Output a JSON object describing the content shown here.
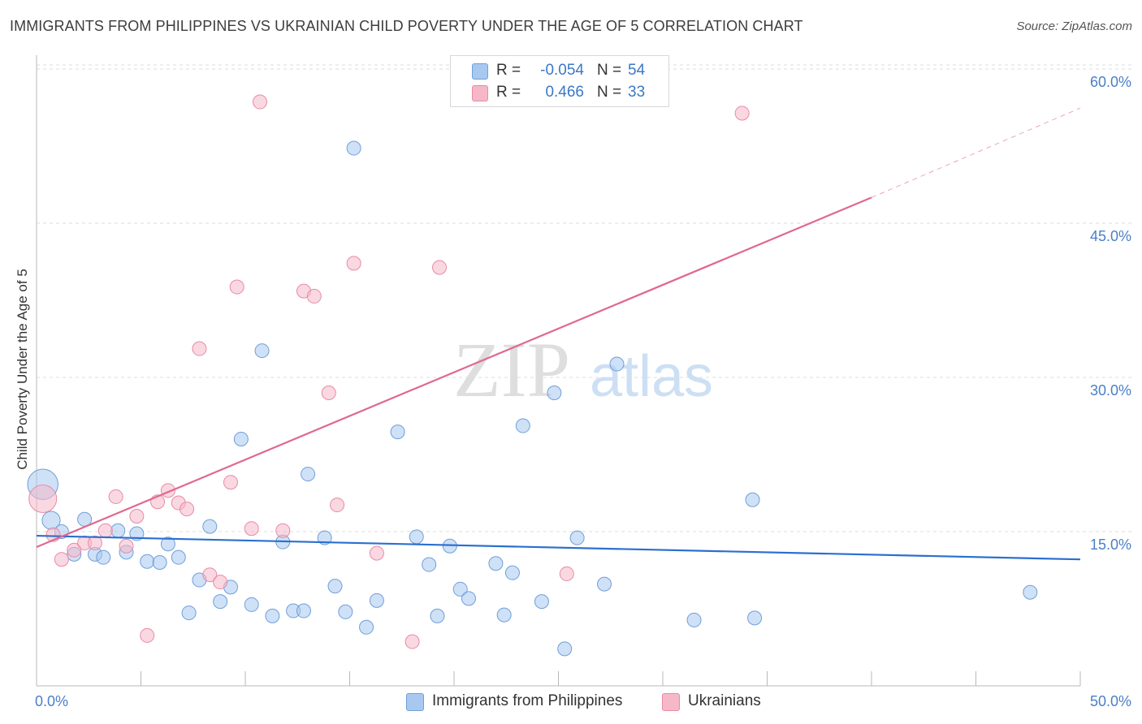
{
  "title": "IMMIGRANTS FROM PHILIPPINES VS UKRAINIAN CHILD POVERTY UNDER THE AGE OF 5 CORRELATION CHART",
  "source": "Source: ZipAtlas.com",
  "watermark": {
    "zip": "ZIP",
    "atlas": "atlas"
  },
  "legend_top": [
    {
      "r_label": "R =",
      "r_value": "-0.054",
      "n_label": "N =",
      "n_value": "54",
      "color": "#a8c8f0"
    },
    {
      "r_label": "R =",
      "r_value": "0.466",
      "n_label": "N =",
      "n_value": "33",
      "color": "#f6b8c9"
    }
  ],
  "legend_bottom": [
    {
      "label": "Immigrants from Philippines",
      "color": "#a8c8f0"
    },
    {
      "label": "Ukrainians",
      "color": "#f6b8c9"
    }
  ],
  "colors": {
    "blue_fill": "#a8c8f0",
    "blue_stroke": "#6f9fd8",
    "blue_line": "#2a6fd0",
    "pink_fill": "#f6b8c9",
    "pink_stroke": "#e88aa6",
    "pink_line": "#e06890",
    "tick_text": "#4a7fc8",
    "grid": "#dcdcdc"
  },
  "chart_data": {
    "type": "scatter",
    "title": "IMMIGRANTS FROM PHILIPPINES VS UKRAINIAN CHILD POVERTY UNDER THE AGE OF 5 CORRELATION CHART",
    "xlabel": "",
    "ylabel": "Child Poverty Under the Age of 5",
    "xlim": [
      0,
      50
    ],
    "ylim": [
      0,
      60
    ],
    "x_tick_labels": [
      {
        "value": 0,
        "label": "0.0%"
      },
      {
        "value": 50,
        "label": "50.0%"
      }
    ],
    "y_tick_labels": [
      {
        "value": 15,
        "label": "15.0%"
      },
      {
        "value": 30,
        "label": "30.0%"
      },
      {
        "value": 45,
        "label": "45.0%"
      },
      {
        "value": 60,
        "label": "60.0%"
      }
    ],
    "grid": true,
    "legend_position": "top-center",
    "series": [
      {
        "name": "Immigrants from Philippines",
        "color": "#a8c8f0",
        "trend": {
          "x": [
            0,
            50
          ],
          "y": [
            14.6,
            12.3
          ],
          "dashed_extension": false
        },
        "points": [
          [
            0.3,
            19.6,
            2.2
          ],
          [
            0.7,
            16.1,
            1.3
          ],
          [
            1.2,
            15.0,
            1
          ],
          [
            1.8,
            12.8,
            1
          ],
          [
            2.3,
            16.2,
            1
          ],
          [
            2.8,
            12.8,
            1
          ],
          [
            3.2,
            12.5,
            1
          ],
          [
            3.9,
            15.1,
            1
          ],
          [
            4.3,
            13.0,
            1
          ],
          [
            4.8,
            14.8,
            1
          ],
          [
            5.3,
            12.1,
            1
          ],
          [
            5.9,
            12.0,
            1
          ],
          [
            6.3,
            13.8,
            1
          ],
          [
            6.8,
            12.5,
            1
          ],
          [
            7.3,
            7.1,
            1
          ],
          [
            7.8,
            10.3,
            1
          ],
          [
            8.3,
            15.5,
            1
          ],
          [
            8.8,
            8.2,
            1
          ],
          [
            9.3,
            9.6,
            1
          ],
          [
            9.8,
            24.0,
            1
          ],
          [
            10.3,
            7.9,
            1
          ],
          [
            10.8,
            32.6,
            1
          ],
          [
            11.3,
            6.8,
            1
          ],
          [
            11.8,
            14.0,
            1
          ],
          [
            12.3,
            7.3,
            1
          ],
          [
            12.8,
            7.3,
            1
          ],
          [
            13.0,
            20.6,
            1
          ],
          [
            13.8,
            14.4,
            1
          ],
          [
            14.3,
            9.7,
            1
          ],
          [
            14.8,
            7.2,
            1
          ],
          [
            15.2,
            52.3,
            1
          ],
          [
            15.8,
            5.7,
            1
          ],
          [
            16.3,
            8.3,
            1
          ],
          [
            17.3,
            24.7,
            1
          ],
          [
            18.2,
            14.5,
            1
          ],
          [
            18.8,
            11.8,
            1
          ],
          [
            19.2,
            6.8,
            1
          ],
          [
            19.8,
            13.6,
            1
          ],
          [
            20.3,
            9.4,
            1
          ],
          [
            20.7,
            8.5,
            1
          ],
          [
            22.0,
            11.9,
            1
          ],
          [
            22.4,
            6.9,
            1
          ],
          [
            22.8,
            11.0,
            1
          ],
          [
            23.3,
            25.3,
            1
          ],
          [
            24.2,
            8.2,
            1
          ],
          [
            24.8,
            28.5,
            1
          ],
          [
            25.3,
            3.6,
            1
          ],
          [
            25.9,
            14.4,
            1
          ],
          [
            27.2,
            9.9,
            1
          ],
          [
            27.8,
            31.3,
            1
          ],
          [
            31.5,
            6.4,
            1
          ],
          [
            34.3,
            18.1,
            1
          ],
          [
            34.4,
            6.6,
            1
          ],
          [
            47.6,
            9.1,
            1
          ]
        ]
      },
      {
        "name": "Ukrainians",
        "color": "#f6b8c9",
        "trend": {
          "x": [
            0,
            40
          ],
          "y": [
            13.5,
            47.5
          ],
          "dashed_to": [
            50,
            56.2
          ]
        },
        "points": [
          [
            0.3,
            18.2,
            2.0
          ],
          [
            0.8,
            14.7,
            1
          ],
          [
            1.2,
            12.3,
            1
          ],
          [
            1.8,
            13.2,
            1
          ],
          [
            2.3,
            13.9,
            1
          ],
          [
            2.8,
            13.9,
            1
          ],
          [
            3.3,
            15.1,
            1
          ],
          [
            3.8,
            18.4,
            1
          ],
          [
            4.3,
            13.6,
            1
          ],
          [
            4.8,
            16.5,
            1
          ],
          [
            5.3,
            4.9,
            1
          ],
          [
            5.8,
            17.9,
            1
          ],
          [
            6.3,
            19.0,
            1
          ],
          [
            6.8,
            17.8,
            1
          ],
          [
            7.2,
            17.2,
            1
          ],
          [
            7.8,
            32.8,
            1
          ],
          [
            8.3,
            10.8,
            1
          ],
          [
            8.8,
            10.1,
            1
          ],
          [
            9.3,
            19.8,
            1
          ],
          [
            9.6,
            38.8,
            1
          ],
          [
            10.3,
            15.3,
            1
          ],
          [
            10.7,
            56.8,
            1
          ],
          [
            11.8,
            15.1,
            1
          ],
          [
            12.8,
            38.4,
            1
          ],
          [
            13.3,
            37.9,
            1
          ],
          [
            14.0,
            28.5,
            1
          ],
          [
            14.4,
            17.6,
            1
          ],
          [
            15.2,
            41.1,
            1
          ],
          [
            16.3,
            12.9,
            1
          ],
          [
            18.0,
            4.3,
            1
          ],
          [
            19.3,
            40.7,
            1
          ],
          [
            25.4,
            10.9,
            1
          ],
          [
            33.8,
            55.7,
            1
          ]
        ]
      }
    ]
  }
}
